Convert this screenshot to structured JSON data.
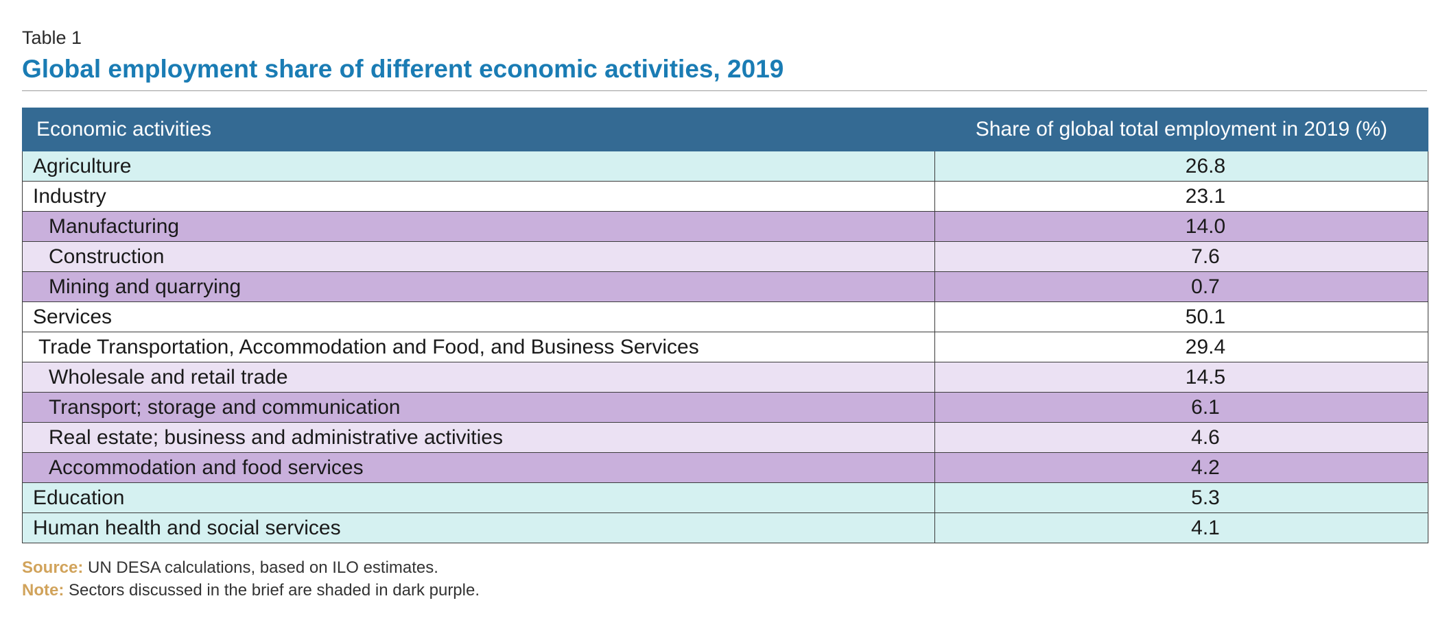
{
  "caption": {
    "table_number": "Table 1",
    "title": "Global employment share of different economic activities, 2019"
  },
  "table": {
    "headers": [
      "Economic activities",
      "Share of global total employment in 2019 (%)"
    ],
    "rows": [
      {
        "label": "Agriculture",
        "value": "26.8",
        "level": 0,
        "shade": "teal"
      },
      {
        "label": "Industry",
        "value": "23.1",
        "level": 0,
        "shade": "white"
      },
      {
        "label": "Manufacturing",
        "value": "14.0",
        "level": 2,
        "shade": "dark-purple"
      },
      {
        "label": "Construction",
        "value": "7.6",
        "level": 2,
        "shade": "light-purple"
      },
      {
        "label": "Mining and quarrying",
        "value": "0.7",
        "level": 2,
        "shade": "dark-purple"
      },
      {
        "label": "Services",
        "value": "50.1",
        "level": 0,
        "shade": "white"
      },
      {
        "label": "Trade Transportation, Accommodation and Food, and Business Services",
        "value": "29.4",
        "level": 1,
        "shade": "white"
      },
      {
        "label": "Wholesale and retail trade",
        "value": "14.5",
        "level": 2,
        "shade": "light-purple"
      },
      {
        "label": "Transport; storage and communication",
        "value": "6.1",
        "level": 2,
        "shade": "dark-purple"
      },
      {
        "label": "Real estate; business and administrative activities",
        "value": "4.6",
        "level": 2,
        "shade": "light-purple"
      },
      {
        "label": "Accommodation and food services",
        "value": "4.2",
        "level": 2,
        "shade": "dark-purple"
      },
      {
        "label": "Education",
        "value": "5.3",
        "level": 0,
        "shade": "teal"
      },
      {
        "label": "Human health and social services",
        "value": "4.1",
        "level": 0,
        "shade": "teal"
      }
    ]
  },
  "notes": {
    "source_label": "Source:",
    "source_text": " UN DESA calculations, based on ILO estimates.",
    "note_label": "Note:",
    "note_text": " Sectors discussed in the brief are shaded in dark purple."
  },
  "colors": {
    "title": "#1a7cb4",
    "header_bg": "#346a93",
    "teal": "#d5f1f1",
    "white": "#ffffff",
    "dark-purple": "#c9b0dc",
    "light-purple": "#ebe1f3",
    "note_label": "#d1a35b"
  }
}
